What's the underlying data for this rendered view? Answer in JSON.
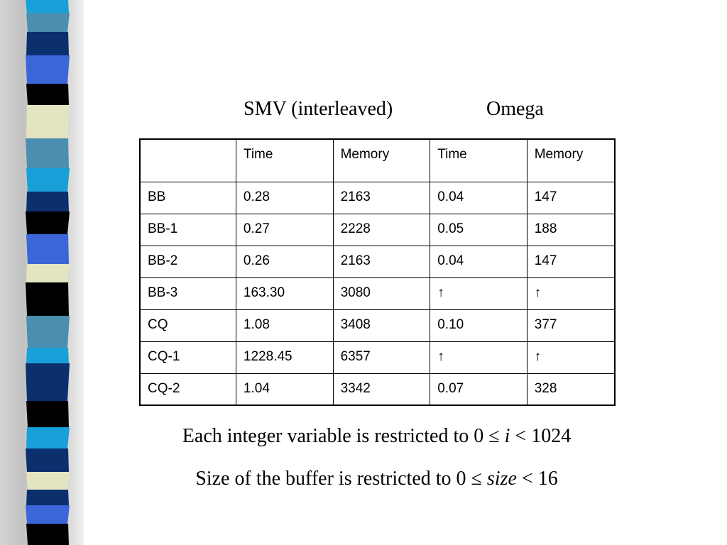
{
  "header": {
    "left": "SMV (interleaved)",
    "right": "Omega"
  },
  "table": {
    "columns": [
      "",
      "Time",
      "Memory",
      "Time",
      "Memory"
    ],
    "rows": [
      [
        "BB",
        "0.28",
        "2163",
        "0.04",
        "147"
      ],
      [
        "BB-1",
        "0.27",
        "2228",
        "0.05",
        "188"
      ],
      [
        "BB-2",
        "0.26",
        "2163",
        "0.04",
        "147"
      ],
      [
        "BB-3",
        "163.30",
        "3080",
        "↑",
        "↑"
      ],
      [
        "CQ",
        "1.08",
        "3408",
        "0.10",
        "377"
      ],
      [
        "CQ-1",
        "1228.45",
        "6357",
        "↑",
        "↑"
      ],
      [
        "CQ-2",
        "1.04",
        "3342",
        "0.07",
        "328"
      ]
    ]
  },
  "notes": {
    "line1_prefix": "Each integer variable is restricted to 0 ≤ ",
    "line1_var": "i",
    "line1_suffix": " < 1024",
    "line2_prefix": "Size of the buffer is restricted to 0 ≤ ",
    "line2_var": "size",
    "line2_suffix": " < 16"
  },
  "colors": {
    "strip_blue": "#3a66d8",
    "strip_cyan": "#1aa0d8",
    "strip_teal": "#4b8fb0",
    "strip_navy": "#0c2f6e",
    "strip_cream": "#e4e4c0",
    "strip_black": "#000000"
  }
}
